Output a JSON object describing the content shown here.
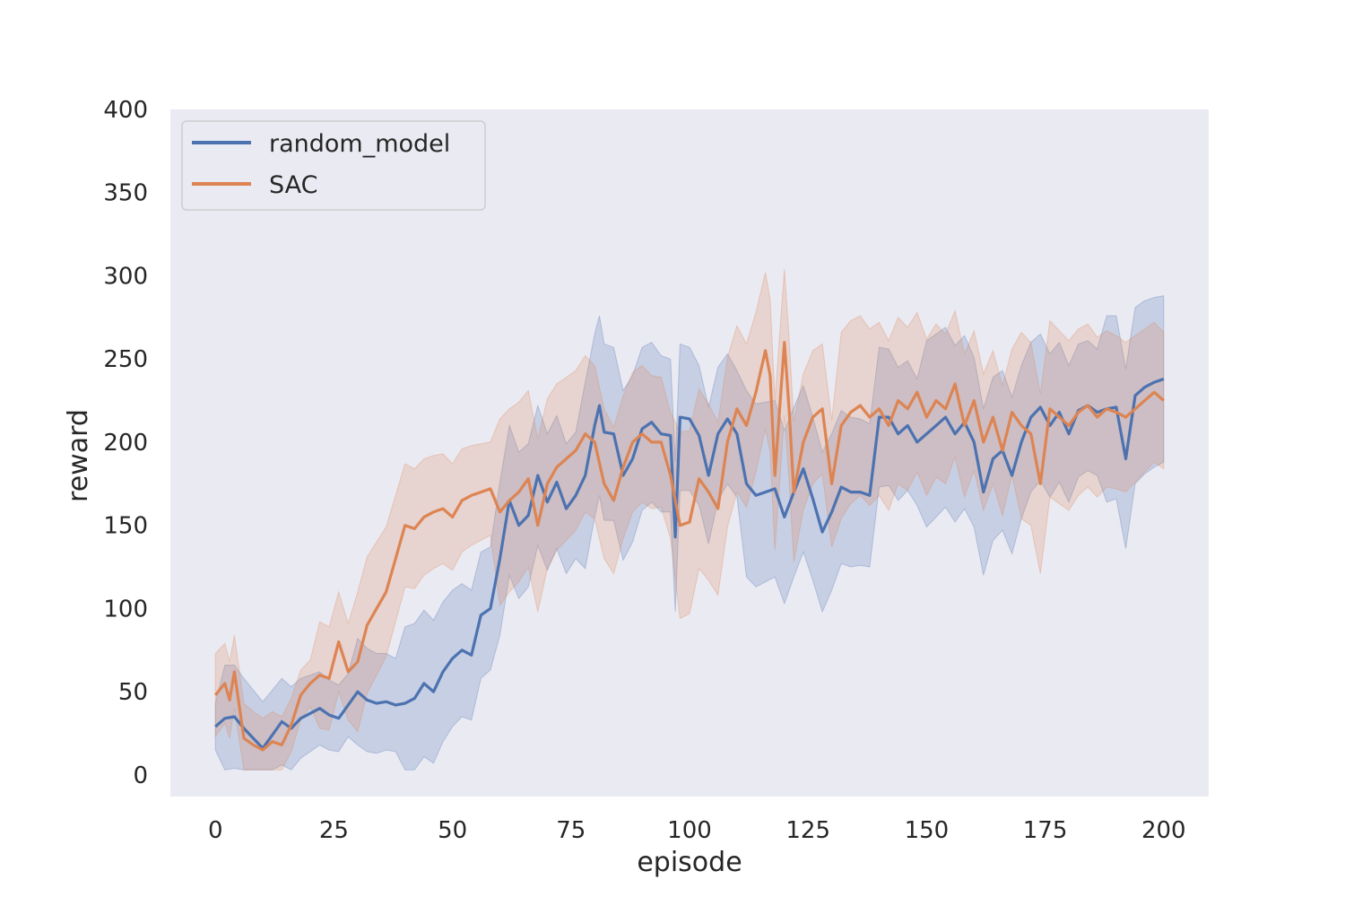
{
  "chart_data": {
    "type": "line",
    "title": "",
    "xlabel": "episode",
    "ylabel": "reward",
    "xlim": [
      -9.5,
      209.5
    ],
    "ylim": [
      -13,
      400
    ],
    "xticks": [
      0,
      25,
      50,
      75,
      100,
      125,
      150,
      175,
      200
    ],
    "yticks": [
      0,
      50,
      100,
      150,
      200,
      250,
      300,
      350,
      400
    ],
    "grid": false,
    "background": "#eaeaf2",
    "legend": {
      "position": "top-left"
    },
    "series": [
      {
        "name": "random_model",
        "color": "#4c72b0",
        "x": [
          0,
          2,
          4,
          6,
          8,
          10,
          12,
          14,
          16,
          18,
          20,
          22,
          24,
          26,
          28,
          30,
          32,
          34,
          36,
          38,
          40,
          42,
          44,
          46,
          48,
          50,
          52,
          54,
          56,
          58,
          60,
          62,
          64,
          66,
          68,
          70,
          72,
          74,
          76,
          78,
          80,
          81,
          82,
          84,
          86,
          88,
          90,
          92,
          94,
          96,
          97,
          98,
          100,
          102,
          104,
          106,
          108,
          110,
          112,
          114,
          116,
          118,
          120,
          122,
          124,
          126,
          128,
          130,
          132,
          134,
          136,
          138,
          140,
          142,
          144,
          146,
          148,
          150,
          152,
          154,
          156,
          158,
          160,
          162,
          164,
          166,
          168,
          170,
          172,
          174,
          176,
          178,
          180,
          182,
          184,
          186,
          188,
          190,
          192,
          194,
          196,
          198,
          200
        ],
        "y": [
          29,
          34,
          35,
          28,
          22,
          16,
          24,
          32,
          28,
          34,
          37,
          40,
          36,
          34,
          42,
          50,
          45,
          43,
          44,
          42,
          43,
          46,
          55,
          50,
          62,
          70,
          75,
          72,
          96,
          100,
          130,
          165,
          150,
          156,
          180,
          164,
          176,
          160,
          168,
          180,
          210,
          222,
          206,
          205,
          180,
          190,
          208,
          212,
          205,
          204,
          143,
          215,
          214,
          204,
          180,
          205,
          214,
          205,
          175,
          168,
          170,
          172,
          155,
          170,
          184,
          166,
          146,
          158,
          173,
          170,
          170,
          168,
          215,
          215,
          205,
          210,
          200,
          205,
          210,
          215,
          205,
          212,
          200,
          170,
          190,
          195,
          180,
          200,
          215,
          221,
          210,
          218,
          205,
          219,
          222,
          218,
          220,
          221,
          190,
          228,
          233,
          236,
          238
        ]
      },
      {
        "name": "SAC",
        "color": "#dd8452",
        "x": [
          0,
          2,
          3,
          4,
          6,
          8,
          10,
          12,
          14,
          16,
          18,
          20,
          22,
          24,
          26,
          28,
          30,
          32,
          34,
          36,
          38,
          40,
          42,
          44,
          46,
          48,
          50,
          52,
          54,
          56,
          58,
          60,
          62,
          64,
          66,
          68,
          70,
          72,
          74,
          76,
          78,
          80,
          82,
          84,
          86,
          88,
          90,
          92,
          94,
          96,
          98,
          100,
          102,
          104,
          106,
          108,
          110,
          112,
          114,
          116,
          117,
          118,
          120,
          121,
          122,
          124,
          126,
          128,
          130,
          132,
          134,
          136,
          138,
          140,
          142,
          144,
          146,
          148,
          150,
          152,
          154,
          156,
          158,
          160,
          162,
          164,
          166,
          168,
          170,
          172,
          174,
          176,
          178,
          180,
          182,
          184,
          186,
          188,
          190,
          192,
          194,
          196,
          198,
          200
        ],
        "y": [
          48,
          55,
          45,
          62,
          22,
          18,
          15,
          20,
          18,
          30,
          48,
          55,
          60,
          58,
          80,
          62,
          68,
          90,
          100,
          110,
          130,
          150,
          148,
          155,
          158,
          160,
          155,
          165,
          168,
          170,
          172,
          158,
          165,
          170,
          178,
          150,
          175,
          185,
          190,
          195,
          205,
          200,
          175,
          165,
          185,
          200,
          205,
          200,
          200,
          180,
          150,
          152,
          178,
          170,
          160,
          200,
          220,
          210,
          230,
          255,
          240,
          180,
          260,
          220,
          170,
          200,
          215,
          220,
          175,
          210,
          218,
          222,
          215,
          220,
          210,
          225,
          220,
          230,
          215,
          225,
          220,
          235,
          210,
          225,
          200,
          215,
          195,
          218,
          210,
          205,
          175,
          220,
          215,
          210,
          218,
          222,
          215,
          220,
          218,
          215,
          220,
          225,
          230,
          225
        ]
      }
    ]
  }
}
